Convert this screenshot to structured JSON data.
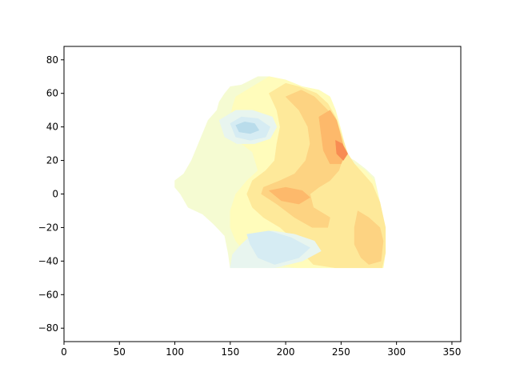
{
  "chart_data": {
    "type": "contour",
    "title": "",
    "xlabel": "",
    "ylabel": "",
    "xlim": [
      0,
      358
    ],
    "ylim": [
      -88,
      88
    ],
    "x_ticks": [
      0,
      50,
      100,
      150,
      200,
      250,
      300,
      350
    ],
    "y_ticks": [
      -80,
      -60,
      -40,
      -20,
      0,
      20,
      40,
      60,
      80
    ],
    "x_tick_labels": [
      "0",
      "50",
      "100",
      "150",
      "200",
      "250",
      "300",
      "350"
    ],
    "y_tick_labels": [
      "−80",
      "−60",
      "−40",
      "−20",
      "0",
      "20",
      "40",
      "60",
      "80"
    ],
    "grid": false,
    "colormap": "RdYlBu_r",
    "level_colors": {
      "light-blue": "#b9dceb",
      "pale-blue": "#d6ecf3",
      "very-pale-blue": "#e8f5ef",
      "pale-yellow-green": "#f5fbd2",
      "pale-yellow": "#fffcbb",
      "yellow": "#fee99a",
      "light-orange": "#fdd382",
      "orange": "#fdb96b",
      "dark-orange": "#f88c52"
    },
    "regions": [
      {
        "level": "pale-yellow-green",
        "points": [
          [
            100,
            8
          ],
          [
            108,
            12
          ],
          [
            115,
            20
          ],
          [
            120,
            28
          ],
          [
            125,
            36
          ],
          [
            130,
            44
          ],
          [
            138,
            50
          ],
          [
            140,
            55
          ],
          [
            145,
            60
          ],
          [
            150,
            64
          ],
          [
            160,
            65
          ],
          [
            175,
            70
          ],
          [
            185,
            70
          ],
          [
            200,
            68
          ],
          [
            215,
            64
          ],
          [
            230,
            62
          ],
          [
            240,
            58
          ],
          [
            245,
            50
          ],
          [
            248,
            40
          ],
          [
            252,
            30
          ],
          [
            256,
            22
          ],
          [
            262,
            20
          ],
          [
            272,
            15
          ],
          [
            280,
            10
          ],
          [
            285,
            -5
          ],
          [
            290,
            -20
          ],
          [
            290,
            -35
          ],
          [
            288,
            -44
          ],
          [
            150,
            -44
          ],
          [
            148,
            -35
          ],
          [
            145,
            -25
          ],
          [
            135,
            -18
          ],
          [
            125,
            -12
          ],
          [
            112,
            -8
          ],
          [
            105,
            0
          ],
          [
            100,
            4
          ]
        ]
      },
      {
        "level": "pale-yellow",
        "points": [
          [
            155,
            58
          ],
          [
            170,
            64
          ],
          [
            185,
            70
          ],
          [
            200,
            68
          ],
          [
            215,
            64
          ],
          [
            230,
            62
          ],
          [
            240,
            58
          ],
          [
            245,
            50
          ],
          [
            250,
            38
          ],
          [
            255,
            25
          ],
          [
            262,
            18
          ],
          [
            272,
            14
          ],
          [
            280,
            8
          ],
          [
            285,
            -5
          ],
          [
            290,
            -20
          ],
          [
            290,
            -35
          ],
          [
            288,
            -44
          ],
          [
            240,
            -44
          ],
          [
            210,
            -44
          ],
          [
            185,
            -42
          ],
          [
            165,
            -36
          ],
          [
            155,
            -28
          ],
          [
            150,
            -20
          ],
          [
            150,
            -10
          ],
          [
            155,
            0
          ],
          [
            165,
            8
          ],
          [
            175,
            14
          ],
          [
            170,
            25
          ],
          [
            160,
            30
          ],
          [
            152,
            36
          ],
          [
            150,
            44
          ],
          [
            152,
            52
          ]
        ]
      },
      {
        "level": "yellow",
        "points": [
          [
            185,
            60
          ],
          [
            200,
            66
          ],
          [
            212,
            64
          ],
          [
            228,
            60
          ],
          [
            238,
            54
          ],
          [
            245,
            46
          ],
          [
            250,
            36
          ],
          [
            256,
            24
          ],
          [
            262,
            18
          ],
          [
            270,
            12
          ],
          [
            278,
            6
          ],
          [
            285,
            -5
          ],
          [
            290,
            -20
          ],
          [
            290,
            -35
          ],
          [
            287,
            -44
          ],
          [
            245,
            -44
          ],
          [
            225,
            -42
          ],
          [
            215,
            -35
          ],
          [
            205,
            -26
          ],
          [
            195,
            -20
          ],
          [
            180,
            -14
          ],
          [
            170,
            -8
          ],
          [
            165,
            0
          ],
          [
            170,
            8
          ],
          [
            182,
            14
          ],
          [
            190,
            20
          ],
          [
            192,
            30
          ],
          [
            195,
            40
          ],
          [
            192,
            50
          ]
        ]
      },
      {
        "level": "light-orange",
        "points": [
          [
            200,
            58
          ],
          [
            214,
            62
          ],
          [
            226,
            58
          ],
          [
            238,
            50
          ],
          [
            245,
            42
          ],
          [
            250,
            30
          ],
          [
            252,
            22
          ],
          [
            248,
            14
          ],
          [
            240,
            8
          ],
          [
            230,
            4
          ],
          [
            222,
            0
          ],
          [
            225,
            -8
          ],
          [
            240,
            -14
          ],
          [
            238,
            -20
          ],
          [
            224,
            -20
          ],
          [
            208,
            -14
          ],
          [
            192,
            -6
          ],
          [
            178,
            0
          ],
          [
            180,
            4
          ],
          [
            195,
            8
          ],
          [
            208,
            12
          ],
          [
            218,
            20
          ],
          [
            222,
            30
          ],
          [
            220,
            40
          ],
          [
            212,
            50
          ]
        ]
      },
      {
        "level": "light-orange",
        "points": [
          [
            265,
            -10
          ],
          [
            275,
            -14
          ],
          [
            285,
            -20
          ],
          [
            288,
            -28
          ],
          [
            286,
            -40
          ],
          [
            275,
            -42
          ],
          [
            268,
            -38
          ],
          [
            262,
            -30
          ],
          [
            262,
            -20
          ]
        ]
      },
      {
        "level": "orange",
        "points": [
          [
            230,
            46
          ],
          [
            240,
            50
          ],
          [
            246,
            44
          ],
          [
            250,
            34
          ],
          [
            254,
            24
          ],
          [
            250,
            18
          ],
          [
            240,
            18
          ],
          [
            234,
            26
          ],
          [
            232,
            36
          ]
        ]
      },
      {
        "level": "orange",
        "points": [
          [
            185,
            2
          ],
          [
            200,
            4
          ],
          [
            215,
            2
          ],
          [
            222,
            -2
          ],
          [
            212,
            -6
          ],
          [
            196,
            -4
          ]
        ]
      },
      {
        "level": "dark-orange",
        "points": [
          [
            245,
            32
          ],
          [
            251,
            30
          ],
          [
            256,
            24
          ],
          [
            252,
            20
          ],
          [
            246,
            24
          ]
        ]
      },
      {
        "level": "very-pale-blue",
        "points": [
          [
            140,
            44
          ],
          [
            155,
            50
          ],
          [
            170,
            50
          ],
          [
            188,
            46
          ],
          [
            192,
            40
          ],
          [
            186,
            33
          ],
          [
            172,
            30
          ],
          [
            156,
            30
          ],
          [
            145,
            34
          ]
        ]
      },
      {
        "level": "pale-blue",
        "points": [
          [
            150,
            42
          ],
          [
            160,
            46
          ],
          [
            175,
            45
          ],
          [
            186,
            40
          ],
          [
            182,
            34
          ],
          [
            168,
            32
          ],
          [
            155,
            34
          ]
        ]
      },
      {
        "level": "light-blue",
        "points": [
          [
            155,
            41
          ],
          [
            163,
            43
          ],
          [
            172,
            42
          ],
          [
            176,
            38
          ],
          [
            168,
            36
          ],
          [
            158,
            37
          ]
        ]
      },
      {
        "level": "very-pale-blue",
        "points": [
          [
            150,
            -44
          ],
          [
            190,
            -44
          ],
          [
            215,
            -40
          ],
          [
            232,
            -34
          ],
          [
            226,
            -28
          ],
          [
            208,
            -24
          ],
          [
            188,
            -22
          ],
          [
            170,
            -24
          ],
          [
            160,
            -30
          ],
          [
            152,
            -36
          ]
        ]
      },
      {
        "level": "pale-blue",
        "points": [
          [
            165,
            -24
          ],
          [
            185,
            -22
          ],
          [
            205,
            -26
          ],
          [
            222,
            -32
          ],
          [
            212,
            -38
          ],
          [
            190,
            -42
          ],
          [
            175,
            -38
          ],
          [
            168,
            -30
          ]
        ]
      },
      {
        "level": "pale-blue",
        "points": [
          [
            178,
            -28
          ],
          [
            195,
            -28
          ],
          [
            205,
            -32
          ],
          [
            195,
            -36
          ],
          [
            182,
            -34
          ]
        ]
      }
    ]
  }
}
